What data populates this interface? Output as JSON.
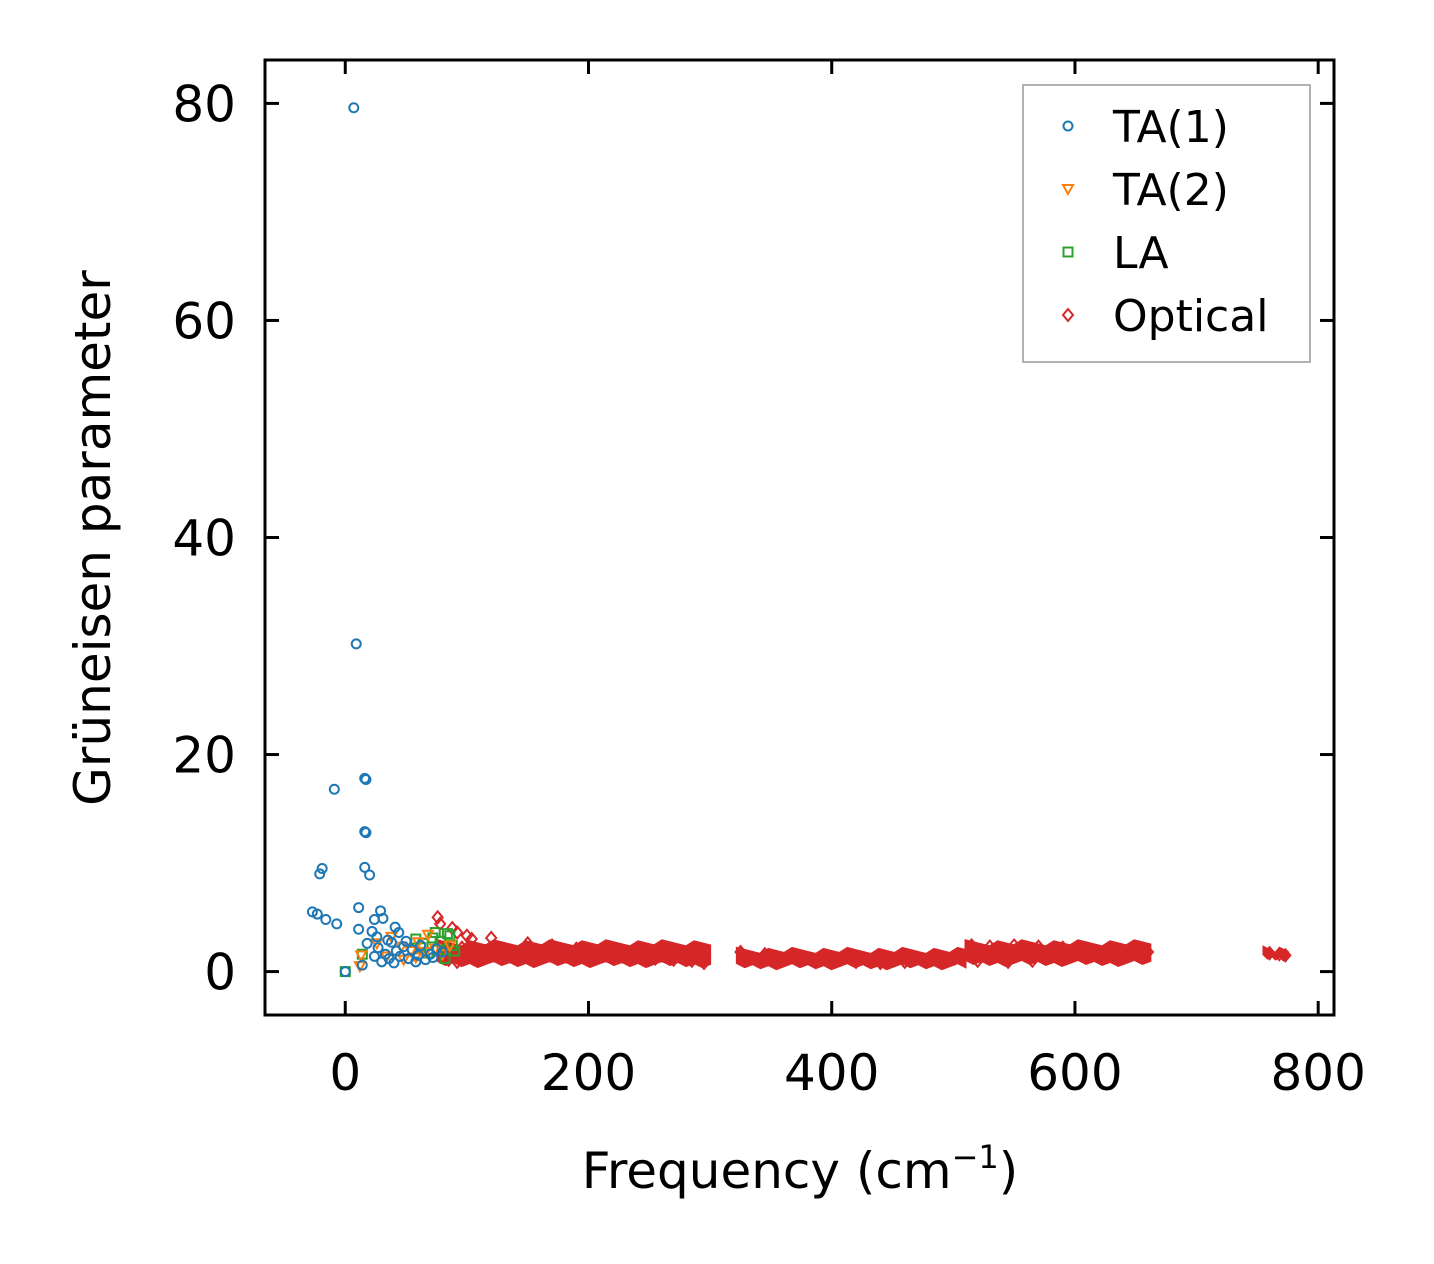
{
  "chart_data": {
    "type": "scatter",
    "title": "",
    "xlabel": "Frequency (cm",
    "xlabel_sup": "−1",
    "xlabel_close": ")",
    "ylabel": "Grüneisen parameter",
    "xlim": [
      -66,
      813
    ],
    "ylim": [
      -4,
      84
    ],
    "xticks": [
      0,
      200,
      400,
      600,
      800
    ],
    "yticks": [
      0,
      20,
      40,
      60,
      80
    ],
    "xtick_labels": [
      "0",
      "200",
      "400",
      "600",
      "800"
    ],
    "ytick_labels": [
      "0",
      "20",
      "40",
      "60",
      "80"
    ],
    "grid": false,
    "legend": {
      "placement": "top-right",
      "entries": [
        "TA(1)",
        "TA(2)",
        "LA",
        "Optical"
      ]
    },
    "series": [
      {
        "name": "TA(1)",
        "marker": "circle",
        "color": "#1f77b4",
        "points": [
          [
            7,
            79.6
          ],
          [
            9,
            30.2
          ],
          [
            -9,
            16.8
          ],
          [
            16,
            17.8
          ],
          [
            17,
            17.7
          ],
          [
            16,
            12.9
          ],
          [
            17,
            12.8
          ],
          [
            16,
            9.6
          ],
          [
            20,
            8.9
          ],
          [
            -19,
            9.5
          ],
          [
            -21,
            9.0
          ],
          [
            -27,
            5.5
          ],
          [
            -23,
            5.3
          ],
          [
            -16,
            4.8
          ],
          [
            -7,
            4.4
          ],
          [
            11,
            5.9
          ],
          [
            29,
            5.6
          ],
          [
            31,
            4.9
          ],
          [
            24,
            4.8
          ],
          [
            11,
            3.9
          ],
          [
            22,
            3.7
          ],
          [
            26,
            3.2
          ],
          [
            41,
            4.1
          ],
          [
            44,
            3.6
          ],
          [
            35,
            2.9
          ],
          [
            18,
            2.6
          ],
          [
            27,
            2.2
          ],
          [
            38,
            2.7
          ],
          [
            48,
            2.3
          ],
          [
            55,
            2.0
          ],
          [
            33,
            1.6
          ],
          [
            45,
            1.4
          ],
          [
            52,
            1.2
          ],
          [
            60,
            1.5
          ],
          [
            66,
            1.1
          ],
          [
            72,
            1.3
          ],
          [
            30,
            0.9
          ],
          [
            40,
            0.8
          ],
          [
            58,
            0.9
          ],
          [
            70,
            1.6
          ],
          [
            62,
            2.4
          ],
          [
            75,
            2.1
          ],
          [
            80,
            1.8
          ],
          [
            50,
            2.8
          ],
          [
            42,
            1.9
          ],
          [
            36,
            1.2
          ],
          [
            24,
            1.4
          ],
          [
            14,
            0.6
          ],
          [
            0,
            0.0
          ]
        ]
      },
      {
        "name": "TA(2)",
        "marker": "triangle-down",
        "color": "#ff7f0e",
        "points": [
          [
            13,
            1.5
          ],
          [
            12,
            0.5
          ],
          [
            26,
            2.6
          ],
          [
            38,
            3.2
          ],
          [
            46,
            2.3
          ],
          [
            54,
            1.9
          ],
          [
            60,
            2.7
          ],
          [
            68,
            3.4
          ],
          [
            74,
            2.1
          ],
          [
            80,
            1.6
          ],
          [
            86,
            2.4
          ],
          [
            58,
            1.3
          ],
          [
            48,
            1.1
          ],
          [
            34,
            1.4
          ],
          [
            66,
            1.8
          ]
        ]
      },
      {
        "name": "LA",
        "marker": "square",
        "color": "#2ca02c",
        "points": [
          [
            0,
            0.0
          ],
          [
            14,
            1.6
          ],
          [
            58,
            3.0
          ],
          [
            64,
            2.6
          ],
          [
            72,
            3.1
          ],
          [
            78,
            2.8
          ],
          [
            84,
            3.5
          ],
          [
            88,
            2.4
          ],
          [
            90,
            1.9
          ],
          [
            86,
            3.3
          ],
          [
            76,
            2.0
          ],
          [
            68,
            1.7
          ],
          [
            82,
            1.2
          ],
          [
            74,
            3.6
          ],
          [
            62,
            2.2
          ]
        ]
      },
      {
        "name": "Optical",
        "marker": "diamond",
        "color": "#d62728",
        "points": [
          [
            76,
            5.0
          ],
          [
            78,
            4.4
          ],
          [
            88,
            4.0
          ],
          [
            92,
            3.6
          ],
          [
            100,
            3.3
          ],
          [
            104,
            3.0
          ],
          [
            120,
            3.1
          ],
          [
            150,
            2.6
          ],
          [
            170,
            2.4
          ],
          [
            190,
            2.1
          ],
          [
            80,
            2.0
          ],
          [
            85,
            1.1
          ],
          [
            92,
            0.9
          ],
          [
            96,
            2.2
          ],
          [
            110,
            1.9
          ],
          [
            130,
            1.7
          ],
          [
            140,
            1.2
          ],
          [
            160,
            1.5
          ],
          [
            180,
            1.9
          ],
          [
            200,
            1.8
          ],
          [
            210,
            2.0
          ],
          [
            220,
            1.6
          ],
          [
            240,
            1.4
          ],
          [
            255,
            1.2
          ],
          [
            270,
            1.1
          ],
          [
            285,
            1.0
          ],
          [
            295,
            0.8
          ],
          [
            325,
            1.8
          ],
          [
            345,
            1.6
          ],
          [
            365,
            1.3
          ],
          [
            385,
            1.1
          ],
          [
            400,
            1.0
          ],
          [
            420,
            0.9
          ],
          [
            440,
            0.8
          ],
          [
            460,
            0.9
          ],
          [
            480,
            1.1
          ],
          [
            500,
            1.2
          ],
          [
            515,
            2.4
          ],
          [
            530,
            2.3
          ],
          [
            550,
            2.4
          ],
          [
            570,
            2.3
          ],
          [
            590,
            2.2
          ],
          [
            610,
            2.1
          ],
          [
            630,
            2.0
          ],
          [
            650,
            1.9
          ],
          [
            660,
            1.8
          ],
          [
            520,
            1.0
          ],
          [
            545,
            0.9
          ],
          [
            565,
            1.0
          ],
          [
            760,
            1.7
          ],
          [
            768,
            1.6
          ],
          [
            773,
            1.5
          ]
        ],
        "bands": [
          {
            "x0": 76,
            "x1": 300,
            "y0": 0.7,
            "y1": 2.6
          },
          {
            "x0": 322,
            "x1": 510,
            "y0": 0.5,
            "y1": 1.9
          },
          {
            "x0": 510,
            "x1": 662,
            "y0": 0.8,
            "y1": 2.6
          },
          {
            "x0": 755,
            "x1": 775,
            "y0": 1.3,
            "y1": 2.0
          }
        ]
      }
    ]
  }
}
